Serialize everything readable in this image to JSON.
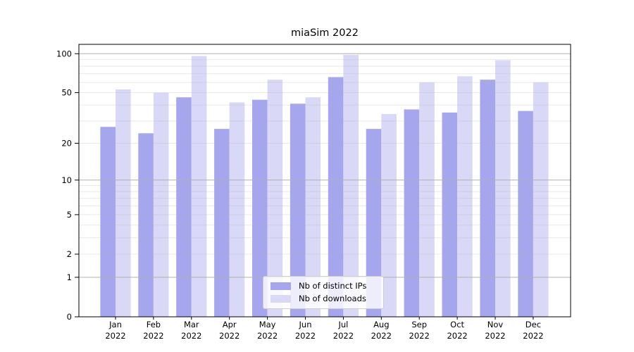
{
  "chart_data": {
    "type": "bar",
    "title": "miaSim 2022",
    "categories": [
      "Jan 2022",
      "Feb 2022",
      "Mar 2022",
      "Apr 2022",
      "May 2022",
      "Jun 2022",
      "Jul 2022",
      "Aug 2022",
      "Sep 2022",
      "Oct 2022",
      "Nov 2022",
      "Dec 2022"
    ],
    "series": [
      {
        "name": "Nb of distinct IPs",
        "color": "#a6a6ef",
        "values": [
          27,
          24,
          46,
          26,
          44,
          41,
          66,
          26,
          37,
          35,
          63,
          36
        ]
      },
      {
        "name": "Nb of downloads",
        "color": "#d9d9f7",
        "values": [
          53,
          50,
          96,
          42,
          63,
          46,
          98,
          34,
          60,
          67,
          89,
          60
        ]
      }
    ],
    "xlabel": "",
    "ylabel": "",
    "yscale": "log1p",
    "ylim": [
      0,
      118
    ],
    "yticks": [
      0,
      1,
      2,
      5,
      10,
      20,
      50,
      100
    ],
    "ytick_labels": [
      "0",
      "1",
      "2",
      "5",
      "10",
      "20",
      "50",
      "100"
    ],
    "yticks_major": [
      1,
      10,
      100
    ],
    "yminor_gridlines": [
      3,
      4,
      6,
      7,
      8,
      9,
      30,
      40,
      60,
      70,
      80,
      90
    ],
    "grid": true,
    "grid_over_bars": true,
    "legend_position": "lower center"
  },
  "colors": {
    "background": "#ffffff",
    "axis": "#000000",
    "grid_major": "#b0b0b0",
    "grid_minor_opacity": 0.28,
    "tick_label": "#000000",
    "legend_border": "#cccccc"
  }
}
